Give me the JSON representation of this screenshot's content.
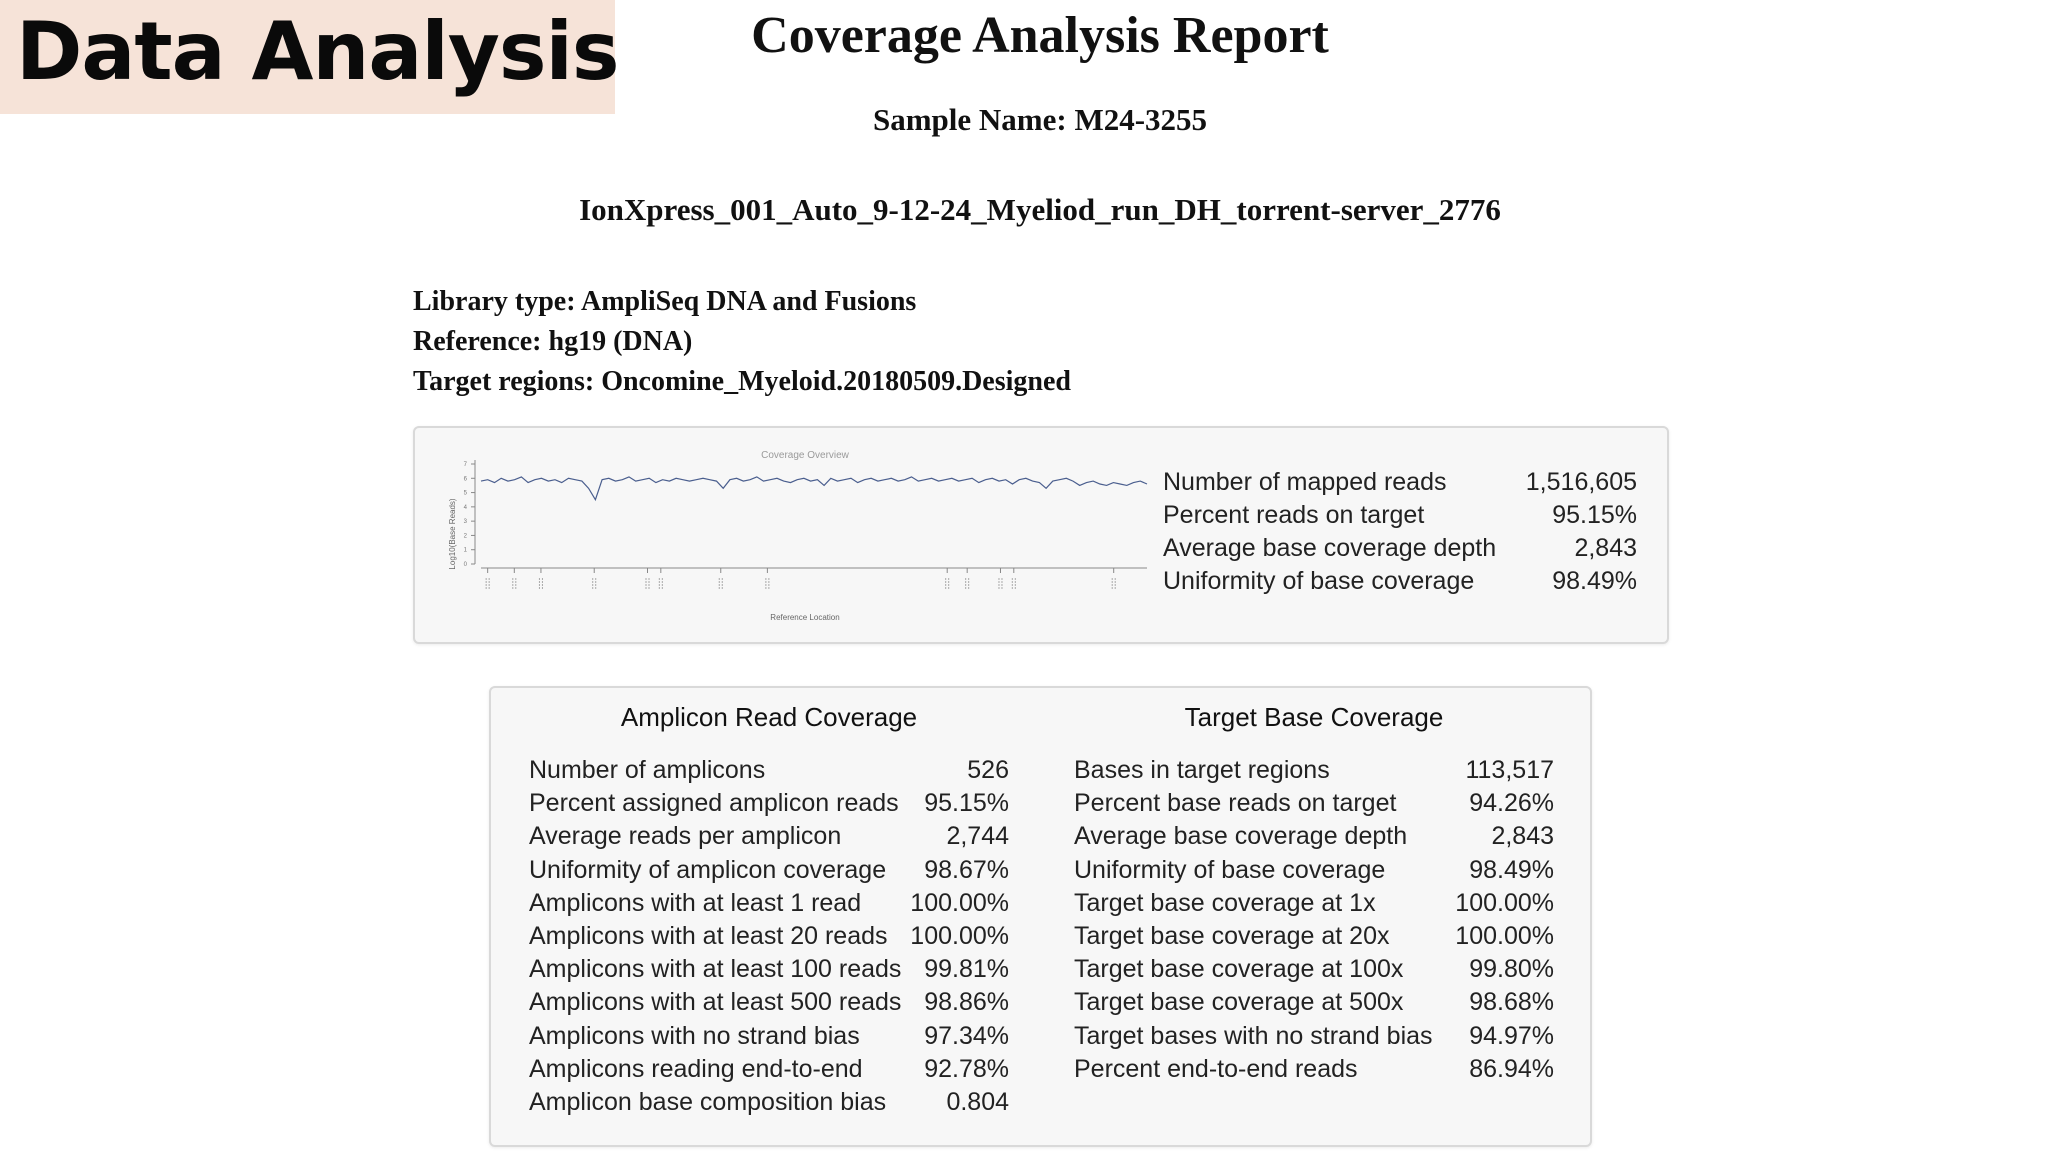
{
  "banner": {
    "title": "Data Analysis",
    "background": "#f6e3d8"
  },
  "report": {
    "title": "Coverage Analysis Report",
    "sample_name": "Sample Name: M24-3255",
    "run_name": "IonXpress_001_Auto_9-12-24_Myeliod_run_DH_torrent-server_2776",
    "library_type": "Library type: AmpliSeq DNA and Fusions",
    "reference": "Reference: hg19 (DNA)",
    "target_regions": "Target regions: Oncomine_Myeloid.20180509.Designed"
  },
  "overview": {
    "chart_title": "Coverage Overview",
    "stats": [
      {
        "label": "Number of mapped reads",
        "value": "1,516,605"
      },
      {
        "label": "Percent reads on target",
        "value": "95.15%"
      },
      {
        "label": "Average base coverage depth",
        "value": "2,843"
      },
      {
        "label": "Uniformity of base coverage",
        "value": "98.49%"
      }
    ]
  },
  "chart_data": {
    "type": "line",
    "title": "Coverage Overview",
    "xlabel": "Reference Location",
    "ylabel": "Log10(Base Reads)",
    "ylim": [
      0,
      7
    ],
    "yticks": [
      "0",
      "1",
      "2",
      "3",
      "4",
      "5",
      "6",
      "7"
    ],
    "x_tick_count": 15,
    "series": [
      {
        "color": "#4a5e8e",
        "values": [
          5.8,
          5.9,
          5.7,
          6.0,
          5.8,
          5.9,
          6.1,
          5.7,
          5.9,
          6.0,
          5.8,
          5.9,
          5.7,
          6.0,
          5.9,
          5.8,
          5.3,
          4.5,
          5.9,
          6.0,
          5.8,
          5.9,
          6.1,
          5.8,
          5.9,
          6.0,
          5.7,
          5.9,
          5.8,
          6.0,
          5.9,
          5.8,
          5.9,
          6.0,
          5.9,
          5.8,
          5.3,
          5.9,
          6.0,
          5.8,
          5.9,
          6.1,
          5.8,
          5.9,
          6.0,
          5.8,
          5.7,
          5.9,
          6.0,
          5.8,
          5.9,
          5.5,
          6.0,
          5.8,
          5.9,
          6.0,
          5.7,
          5.9,
          6.0,
          5.8,
          5.9,
          6.0,
          5.8,
          5.9,
          6.1,
          5.8,
          5.9,
          6.0,
          5.8,
          5.9,
          6.0,
          5.8,
          5.9,
          6.0,
          5.7,
          5.9,
          6.0,
          5.8,
          5.9,
          5.6,
          5.9,
          6.0,
          5.8,
          5.7,
          5.3,
          5.8,
          5.9,
          6.0,
          5.8,
          5.5,
          5.7,
          5.8,
          5.6,
          5.5,
          5.7,
          5.6,
          5.5,
          5.7,
          5.8,
          5.6
        ]
      }
    ]
  },
  "amplicon": {
    "heading": "Amplicon Read Coverage",
    "rows": [
      {
        "label": "Number of amplicons",
        "value": "526"
      },
      {
        "label": "Percent assigned amplicon reads",
        "value": "95.15%"
      },
      {
        "label": "Average reads per amplicon",
        "value": "2,744"
      },
      {
        "label": "Uniformity of amplicon coverage",
        "value": "98.67%"
      },
      {
        "label": "Amplicons with at least 1 read",
        "value": "100.00%"
      },
      {
        "label": "Amplicons with at least 20 reads",
        "value": "100.00%"
      },
      {
        "label": "Amplicons with at least 100 reads",
        "value": "99.81%"
      },
      {
        "label": "Amplicons with at least 500 reads",
        "value": "98.86%"
      },
      {
        "label": "Amplicons with no strand bias",
        "value": "97.34%"
      },
      {
        "label": "Amplicons reading end-to-end",
        "value": "92.78%"
      },
      {
        "label": "Amplicon base composition bias",
        "value": "0.804"
      }
    ]
  },
  "target": {
    "heading": "Target Base Coverage",
    "rows": [
      {
        "label": "Bases in target regions",
        "value": "113,517"
      },
      {
        "label": "Percent base reads on target",
        "value": "94.26%"
      },
      {
        "label": "Average base coverage depth",
        "value": "2,843"
      },
      {
        "label": "Uniformity of base coverage",
        "value": "98.49%"
      },
      {
        "label": "Target base coverage at 1x",
        "value": "100.00%"
      },
      {
        "label": "Target base coverage at 20x",
        "value": "100.00%"
      },
      {
        "label": "Target base coverage at 100x",
        "value": "99.80%"
      },
      {
        "label": "Target base coverage at 500x",
        "value": "98.68%"
      },
      {
        "label": "Target bases with no strand bias",
        "value": "94.97%"
      },
      {
        "label": "Percent end-to-end reads",
        "value": "86.94%"
      }
    ]
  }
}
